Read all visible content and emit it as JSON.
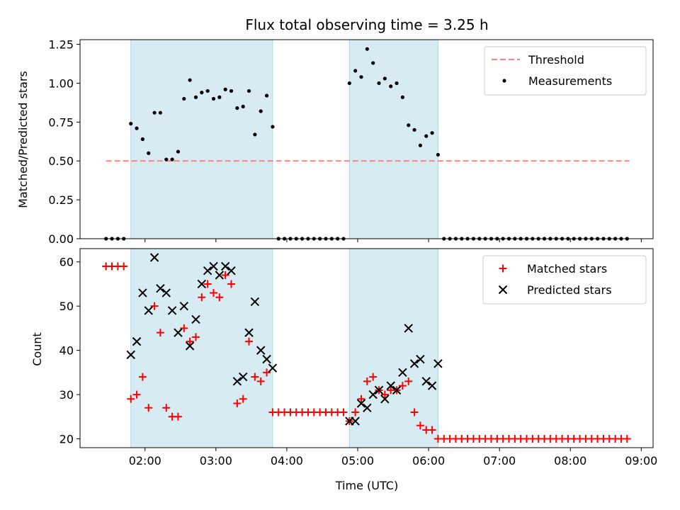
{
  "chart_data": {
    "title": "Flux total observing time = 3.25 h",
    "xlabel": "Time (UTC)",
    "x_ticks": [
      "02:00",
      "03:00",
      "04:00",
      "05:00",
      "06:00",
      "07:00",
      "08:00",
      "09:00"
    ],
    "x_range": [
      "01:05",
      "09:10"
    ],
    "shaded_intervals": [
      [
        "01:48",
        "03:48"
      ],
      [
        "04:53",
        "06:08"
      ]
    ],
    "shade_color": "#add8e6",
    "panels": [
      {
        "id": "ratio",
        "type": "scatter",
        "ylabel": "Matched/Predicted stars",
        "ylim": [
          0,
          1.28
        ],
        "y_ticks": [
          "0.00",
          "0.25",
          "0.50",
          "0.75",
          "1.00",
          "1.25"
        ],
        "legend_position": "top-right",
        "threshold": {
          "name": "Threshold",
          "value": 0.5,
          "x_range": [
            "01:27",
            "08:50"
          ],
          "color": "#ff8080"
        },
        "series": [
          {
            "name": "Measurements",
            "marker": "dot",
            "color": "#000000",
            "points": [
              [
                "01:27",
                0
              ],
              [
                "01:32",
                0
              ],
              [
                "01:37",
                0
              ],
              [
                "01:42",
                0
              ],
              [
                "01:48",
                0.74
              ],
              [
                "01:53",
                0.71
              ],
              [
                "01:58",
                0.64
              ],
              [
                "02:03",
                0.55
              ],
              [
                "02:08",
                0.81
              ],
              [
                "02:13",
                0.81
              ],
              [
                "02:18",
                0.51
              ],
              [
                "02:23",
                0.51
              ],
              [
                "02:28",
                0.56
              ],
              [
                "02:33",
                0.9
              ],
              [
                "02:38",
                1.02
              ],
              [
                "02:43",
                0.91
              ],
              [
                "02:48",
                0.94
              ],
              [
                "02:53",
                0.95
              ],
              [
                "02:58",
                0.9
              ],
              [
                "03:03",
                0.91
              ],
              [
                "03:08",
                0.96
              ],
              [
                "03:13",
                0.95
              ],
              [
                "03:18",
                0.84
              ],
              [
                "03:23",
                0.85
              ],
              [
                "03:28",
                0.95
              ],
              [
                "03:33",
                0.67
              ],
              [
                "03:38",
                0.82
              ],
              [
                "03:43",
                0.92
              ],
              [
                "03:48",
                0.72
              ],
              [
                "03:53",
                0
              ],
              [
                "03:58",
                0
              ],
              [
                "04:03",
                0
              ],
              [
                "04:08",
                0
              ],
              [
                "04:13",
                0
              ],
              [
                "04:18",
                0
              ],
              [
                "04:23",
                0
              ],
              [
                "04:28",
                0
              ],
              [
                "04:33",
                0
              ],
              [
                "04:38",
                0
              ],
              [
                "04:43",
                0
              ],
              [
                "04:48",
                0
              ],
              [
                "04:53",
                1.0
              ],
              [
                "04:58",
                1.08
              ],
              [
                "05:03",
                1.04
              ],
              [
                "05:08",
                1.22
              ],
              [
                "05:13",
                1.13
              ],
              [
                "05:18",
                1.0
              ],
              [
                "05:23",
                1.03
              ],
              [
                "05:28",
                0.98
              ],
              [
                "05:33",
                1.0
              ],
              [
                "05:38",
                0.91
              ],
              [
                "05:43",
                0.73
              ],
              [
                "05:48",
                0.7
              ],
              [
                "05:53",
                0.6
              ],
              [
                "05:58",
                0.66
              ],
              [
                "06:03",
                0.68
              ],
              [
                "06:08",
                0.54
              ],
              [
                "06:13",
                0
              ],
              [
                "06:18",
                0
              ],
              [
                "06:23",
                0
              ],
              [
                "06:28",
                0
              ],
              [
                "06:33",
                0
              ],
              [
                "06:38",
                0
              ],
              [
                "06:43",
                0
              ],
              [
                "06:48",
                0
              ],
              [
                "06:53",
                0
              ],
              [
                "06:58",
                0
              ],
              [
                "07:03",
                0
              ],
              [
                "07:08",
                0
              ],
              [
                "07:13",
                0
              ],
              [
                "07:18",
                0
              ],
              [
                "07:23",
                0
              ],
              [
                "07:28",
                0
              ],
              [
                "07:33",
                0
              ],
              [
                "07:38",
                0
              ],
              [
                "07:43",
                0
              ],
              [
                "07:48",
                0
              ],
              [
                "07:53",
                0
              ],
              [
                "07:58",
                0
              ],
              [
                "08:03",
                0
              ],
              [
                "08:08",
                0
              ],
              [
                "08:13",
                0
              ],
              [
                "08:18",
                0
              ],
              [
                "08:23",
                0
              ],
              [
                "08:28",
                0
              ],
              [
                "08:33",
                0
              ],
              [
                "08:38",
                0
              ],
              [
                "08:43",
                0
              ],
              [
                "08:48",
                0
              ]
            ]
          }
        ]
      },
      {
        "id": "counts",
        "type": "scatter",
        "ylabel": "Count",
        "ylim": [
          18,
          63
        ],
        "y_ticks": [
          "20",
          "30",
          "40",
          "50",
          "60"
        ],
        "legend_position": "top-right",
        "series": [
          {
            "name": "Matched stars",
            "marker": "plus",
            "color": "#ff0000",
            "points": [
              [
                "01:27",
                59
              ],
              [
                "01:32",
                59
              ],
              [
                "01:37",
                59
              ],
              [
                "01:42",
                59
              ],
              [
                "01:48",
                29
              ],
              [
                "01:53",
                30
              ],
              [
                "01:58",
                34
              ],
              [
                "02:03",
                27
              ],
              [
                "02:08",
                50
              ],
              [
                "02:13",
                44
              ],
              [
                "02:18",
                27
              ],
              [
                "02:23",
                25
              ],
              [
                "02:28",
                25
              ],
              [
                "02:33",
                45
              ],
              [
                "02:38",
                42
              ],
              [
                "02:43",
                43
              ],
              [
                "02:48",
                52
              ],
              [
                "02:53",
                55
              ],
              [
                "02:58",
                53
              ],
              [
                "03:03",
                52
              ],
              [
                "03:08",
                57
              ],
              [
                "03:13",
                55
              ],
              [
                "03:18",
                28
              ],
              [
                "03:23",
                29
              ],
              [
                "03:28",
                42
              ],
              [
                "03:33",
                34
              ],
              [
                "03:38",
                33
              ],
              [
                "03:43",
                35
              ],
              [
                "03:48",
                26
              ],
              [
                "03:53",
                26
              ],
              [
                "03:58",
                26
              ],
              [
                "04:03",
                26
              ],
              [
                "04:08",
                26
              ],
              [
                "04:13",
                26
              ],
              [
                "04:18",
                26
              ],
              [
                "04:23",
                26
              ],
              [
                "04:28",
                26
              ],
              [
                "04:33",
                26
              ],
              [
                "04:38",
                26
              ],
              [
                "04:43",
                26
              ],
              [
                "04:48",
                26
              ],
              [
                "04:53",
                24
              ],
              [
                "04:58",
                26
              ],
              [
                "05:03",
                29
              ],
              [
                "05:08",
                33
              ],
              [
                "05:13",
                34
              ],
              [
                "05:18",
                31
              ],
              [
                "05:23",
                30
              ],
              [
                "05:28",
                31
              ],
              [
                "05:33",
                31
              ],
              [
                "05:38",
                32
              ],
              [
                "05:43",
                33
              ],
              [
                "05:48",
                26
              ],
              [
                "05:53",
                23
              ],
              [
                "05:58",
                22
              ],
              [
                "06:03",
                22
              ],
              [
                "06:08",
                20
              ],
              [
                "06:13",
                20
              ],
              [
                "06:18",
                20
              ],
              [
                "06:23",
                20
              ],
              [
                "06:28",
                20
              ],
              [
                "06:33",
                20
              ],
              [
                "06:38",
                20
              ],
              [
                "06:43",
                20
              ],
              [
                "06:48",
                20
              ],
              [
                "06:53",
                20
              ],
              [
                "06:58",
                20
              ],
              [
                "07:03",
                20
              ],
              [
                "07:08",
                20
              ],
              [
                "07:13",
                20
              ],
              [
                "07:18",
                20
              ],
              [
                "07:23",
                20
              ],
              [
                "07:28",
                20
              ],
              [
                "07:33",
                20
              ],
              [
                "07:38",
                20
              ],
              [
                "07:43",
                20
              ],
              [
                "07:48",
                20
              ],
              [
                "07:53",
                20
              ],
              [
                "07:58",
                20
              ],
              [
                "08:03",
                20
              ],
              [
                "08:08",
                20
              ],
              [
                "08:13",
                20
              ],
              [
                "08:18",
                20
              ],
              [
                "08:23",
                20
              ],
              [
                "08:28",
                20
              ],
              [
                "08:33",
                20
              ],
              [
                "08:38",
                20
              ],
              [
                "08:43",
                20
              ],
              [
                "08:48",
                20
              ]
            ]
          },
          {
            "name": "Predicted stars",
            "marker": "x",
            "color": "#000000",
            "points": [
              [
                "01:48",
                39
              ],
              [
                "01:53",
                42
              ],
              [
                "01:58",
                53
              ],
              [
                "02:03",
                49
              ],
              [
                "02:08",
                61
              ],
              [
                "02:13",
                54
              ],
              [
                "02:18",
                53
              ],
              [
                "02:23",
                49
              ],
              [
                "02:28",
                44
              ],
              [
                "02:33",
                50
              ],
              [
                "02:38",
                41
              ],
              [
                "02:43",
                47
              ],
              [
                "02:48",
                55
              ],
              [
                "02:53",
                58
              ],
              [
                "02:58",
                59
              ],
              [
                "03:03",
                57
              ],
              [
                "03:08",
                59
              ],
              [
                "03:13",
                58
              ],
              [
                "03:18",
                33
              ],
              [
                "03:23",
                34
              ],
              [
                "03:28",
                44
              ],
              [
                "03:33",
                51
              ],
              [
                "03:38",
                40
              ],
              [
                "03:43",
                38
              ],
              [
                "03:48",
                36
              ],
              [
                "04:53",
                24
              ],
              [
                "04:58",
                24
              ],
              [
                "05:03",
                28
              ],
              [
                "05:08",
                27
              ],
              [
                "05:13",
                30
              ],
              [
                "05:18",
                31
              ],
              [
                "05:23",
                29
              ],
              [
                "05:28",
                32
              ],
              [
                "05:33",
                31
              ],
              [
                "05:38",
                35
              ],
              [
                "05:43",
                45
              ],
              [
                "05:48",
                37
              ],
              [
                "05:53",
                38
              ],
              [
                "05:58",
                33
              ],
              [
                "06:03",
                32
              ],
              [
                "06:08",
                37
              ]
            ]
          }
        ]
      }
    ]
  }
}
